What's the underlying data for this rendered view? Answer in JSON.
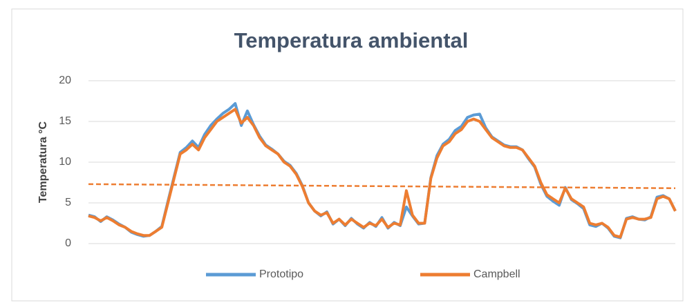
{
  "chart_data": {
    "type": "line",
    "title": "Temperatura ambiental",
    "ylabel": "Temperatura °C",
    "ylim": [
      0,
      20
    ],
    "yticks": [
      0,
      5,
      10,
      15,
      20
    ],
    "grid": true,
    "legend": "bottom",
    "series": [
      {
        "name": "Prototipo",
        "color": "#5b9bd5",
        "values": [
          3.5,
          3.3,
          2.7,
          3.3,
          2.9,
          2.4,
          2.0,
          1.4,
          1.1,
          0.9,
          1.0,
          1.5,
          2.1,
          5.2,
          8.2,
          11.2,
          11.8,
          12.6,
          11.8,
          13.4,
          14.5,
          15.3,
          16.0,
          16.5,
          17.2,
          14.5,
          16.3,
          14.6,
          13.2,
          12.1,
          11.6,
          11.0,
          10.1,
          9.6,
          8.6,
          7.1,
          5.0,
          4.0,
          3.4,
          3.9,
          2.4,
          3.0,
          2.2,
          3.1,
          2.4,
          1.9,
          2.6,
          2.1,
          3.2,
          1.9,
          2.6,
          2.2,
          4.5,
          3.4,
          2.4,
          2.5,
          8.1,
          10.8,
          12.2,
          12.8,
          13.9,
          14.4,
          15.5,
          15.8,
          15.9,
          14.2,
          13.1,
          12.6,
          12.1,
          11.9,
          11.9,
          11.5,
          10.4,
          9.4,
          7.3,
          5.8,
          5.2,
          4.7,
          6.9,
          5.4,
          4.9,
          4.3,
          2.3,
          2.1,
          2.5,
          1.9,
          0.9,
          0.7,
          3.1,
          3.3,
          3.0,
          2.9,
          3.3,
          5.7,
          5.9,
          5.5,
          4.0
        ]
      },
      {
        "name": "Campbell",
        "color": "#ed7d31",
        "values": [
          3.4,
          3.2,
          2.8,
          3.2,
          2.8,
          2.3,
          2.0,
          1.5,
          1.2,
          1.0,
          1.0,
          1.5,
          2.0,
          5.0,
          8.0,
          11.0,
          11.5,
          12.2,
          11.5,
          13.0,
          14.0,
          15.0,
          15.5,
          16.0,
          16.5,
          14.8,
          15.5,
          14.5,
          13.0,
          12.0,
          11.5,
          11.0,
          10.0,
          9.5,
          8.5,
          7.0,
          5.0,
          4.0,
          3.5,
          3.8,
          2.5,
          3.0,
          2.3,
          3.0,
          2.5,
          2.0,
          2.5,
          2.2,
          3.0,
          2.0,
          2.5,
          2.3,
          6.5,
          3.5,
          2.5,
          2.5,
          8.0,
          10.5,
          12.0,
          12.5,
          13.5,
          14.0,
          15.0,
          15.3,
          15.0,
          14.0,
          13.0,
          12.5,
          12.0,
          11.8,
          11.8,
          11.5,
          10.5,
          9.5,
          7.5,
          6.0,
          5.5,
          5.0,
          6.8,
          5.5,
          5.0,
          4.5,
          2.5,
          2.3,
          2.5,
          2.0,
          1.0,
          0.8,
          3.0,
          3.2,
          3.0,
          3.0,
          3.2,
          5.5,
          5.8,
          5.5,
          4.0
        ]
      }
    ],
    "trendline": {
      "color": "#ed7d31",
      "values": [
        7.3,
        6.8
      ]
    }
  }
}
